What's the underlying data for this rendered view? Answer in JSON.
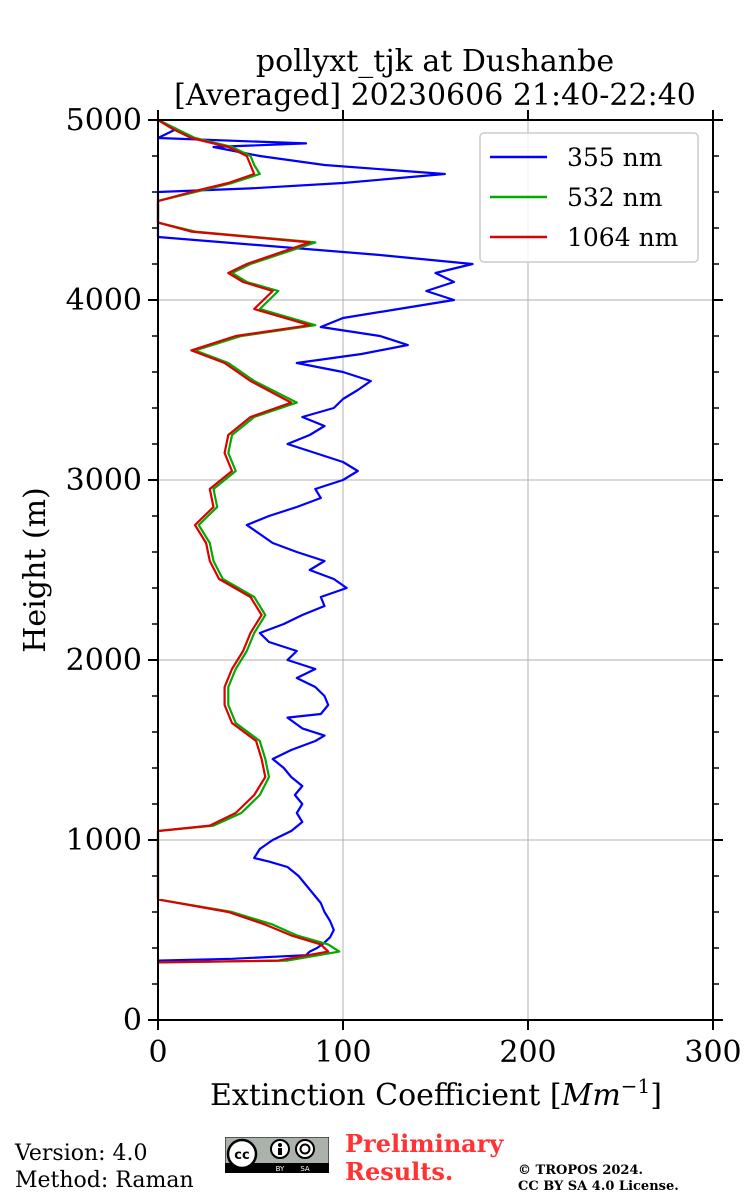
{
  "chart_data": {
    "type": "line",
    "title_line1": "pollyxt_tjk at Dushanbe",
    "title_line2": "[Averaged] 20230606 21:40-22:40",
    "xlabel_main": "Extinction Coefficient [",
    "xlabel_unit": "Mm",
    "xlabel_exp": "−1",
    "xlabel_close": "]",
    "ylabel": "Height (m)",
    "xlim": [
      0,
      300
    ],
    "ylim": [
      0,
      5000
    ],
    "x_ticks": [
      0,
      100,
      200,
      300
    ],
    "x_tick_labels": [
      "0",
      "100",
      "200",
      "300"
    ],
    "y_ticks": [
      0,
      1000,
      2000,
      3000,
      4000,
      5000
    ],
    "y_tick_labels": [
      "0",
      "1000",
      "2000",
      "3000",
      "4000",
      "5000"
    ],
    "grid": true,
    "legend_position": "top-right",
    "series": [
      {
        "name": "355 nm",
        "color": "#0000ff",
        "points": [
          [
            0,
            330
          ],
          [
            40,
            340
          ],
          [
            80,
            360
          ],
          [
            82,
            380
          ],
          [
            86,
            400
          ],
          [
            90,
            430
          ],
          [
            93,
            460
          ],
          [
            95,
            500
          ],
          [
            93,
            550
          ],
          [
            90,
            600
          ],
          [
            88,
            650
          ],
          [
            84,
            700
          ],
          [
            80,
            750
          ],
          [
            76,
            800
          ],
          [
            70,
            850
          ],
          [
            60,
            880
          ],
          [
            52,
            900
          ],
          [
            55,
            950
          ],
          [
            62,
            1000
          ],
          [
            72,
            1050
          ],
          [
            78,
            1100
          ],
          [
            75,
            1150
          ],
          [
            78,
            1200
          ],
          [
            74,
            1250
          ],
          [
            78,
            1300
          ],
          [
            72,
            1350
          ],
          [
            68,
            1400
          ],
          [
            62,
            1450
          ],
          [
            72,
            1500
          ],
          [
            85,
            1550
          ],
          [
            90,
            1580
          ],
          [
            78,
            1620
          ],
          [
            70,
            1680
          ],
          [
            88,
            1700
          ],
          [
            92,
            1750
          ],
          [
            90,
            1800
          ],
          [
            85,
            1850
          ],
          [
            75,
            1900
          ],
          [
            85,
            1950
          ],
          [
            70,
            2000
          ],
          [
            75,
            2050
          ],
          [
            60,
            2100
          ],
          [
            55,
            2150
          ],
          [
            68,
            2200
          ],
          [
            78,
            2250
          ],
          [
            90,
            2300
          ],
          [
            88,
            2350
          ],
          [
            102,
            2400
          ],
          [
            95,
            2450
          ],
          [
            82,
            2500
          ],
          [
            90,
            2550
          ],
          [
            75,
            2600
          ],
          [
            62,
            2650
          ],
          [
            55,
            2700
          ],
          [
            48,
            2750
          ],
          [
            60,
            2800
          ],
          [
            75,
            2850
          ],
          [
            88,
            2900
          ],
          [
            85,
            2950
          ],
          [
            100,
            3000
          ],
          [
            108,
            3050
          ],
          [
            100,
            3100
          ],
          [
            85,
            3150
          ],
          [
            70,
            3200
          ],
          [
            82,
            3250
          ],
          [
            90,
            3300
          ],
          [
            78,
            3350
          ],
          [
            95,
            3400
          ],
          [
            100,
            3450
          ],
          [
            108,
            3500
          ],
          [
            115,
            3550
          ],
          [
            100,
            3600
          ],
          [
            75,
            3650
          ],
          [
            110,
            3700
          ],
          [
            135,
            3750
          ],
          [
            120,
            3800
          ],
          [
            88,
            3850
          ],
          [
            100,
            3900
          ],
          [
            130,
            3950
          ],
          [
            160,
            4000
          ],
          [
            145,
            4050
          ],
          [
            160,
            4100
          ],
          [
            150,
            4150
          ],
          [
            170,
            4200
          ],
          [
            120,
            4250
          ],
          [
            0,
            4350
          ],
          [
            0,
            4400
          ],
          [
            0,
            4600
          ],
          [
            50,
            4620
          ],
          [
            100,
            4650
          ],
          [
            155,
            4700
          ],
          [
            90,
            4750
          ],
          [
            55,
            4800
          ],
          [
            30,
            4850
          ],
          [
            80,
            4870
          ],
          [
            0,
            4900
          ],
          [
            10,
            4950
          ],
          [
            0,
            5000
          ]
        ]
      },
      {
        "name": "532 nm",
        "color": "#00aa00",
        "points": [
          [
            0,
            320
          ],
          [
            70,
            330
          ],
          [
            98,
            380
          ],
          [
            92,
            420
          ],
          [
            75,
            470
          ],
          [
            62,
            530
          ],
          [
            40,
            600
          ],
          [
            0,
            670
          ],
          [
            0,
            1050
          ],
          [
            30,
            1080
          ],
          [
            45,
            1150
          ],
          [
            55,
            1250
          ],
          [
            60,
            1350
          ],
          [
            58,
            1450
          ],
          [
            55,
            1550
          ],
          [
            42,
            1650
          ],
          [
            38,
            1750
          ],
          [
            38,
            1850
          ],
          [
            42,
            1950
          ],
          [
            48,
            2050
          ],
          [
            52,
            2150
          ],
          [
            58,
            2250
          ],
          [
            52,
            2350
          ],
          [
            35,
            2450
          ],
          [
            30,
            2550
          ],
          [
            28,
            2650
          ],
          [
            22,
            2750
          ],
          [
            32,
            2850
          ],
          [
            30,
            2950
          ],
          [
            42,
            3050
          ],
          [
            38,
            3150
          ],
          [
            40,
            3250
          ],
          [
            52,
            3350
          ],
          [
            75,
            3430
          ],
          [
            52,
            3550
          ],
          [
            38,
            3650
          ],
          [
            20,
            3720
          ],
          [
            45,
            3800
          ],
          [
            85,
            3860
          ],
          [
            55,
            3950
          ],
          [
            65,
            4050
          ],
          [
            48,
            4100
          ],
          [
            40,
            4150
          ],
          [
            50,
            4200
          ],
          [
            85,
            4320
          ],
          [
            20,
            4380
          ],
          [
            0,
            4430
          ],
          [
            0,
            4550
          ],
          [
            20,
            4600
          ],
          [
            40,
            4650
          ],
          [
            55,
            4700
          ],
          [
            52,
            4750
          ],
          [
            50,
            4800
          ],
          [
            40,
            4850
          ],
          [
            20,
            4900
          ],
          [
            10,
            4950
          ],
          [
            0,
            5000
          ]
        ]
      },
      {
        "name": "1064 nm",
        "color": "#dd0000",
        "points": [
          [
            0,
            320
          ],
          [
            65,
            330
          ],
          [
            92,
            380
          ],
          [
            88,
            420
          ],
          [
            72,
            470
          ],
          [
            58,
            530
          ],
          [
            38,
            600
          ],
          [
            0,
            670
          ],
          [
            0,
            1050
          ],
          [
            28,
            1080
          ],
          [
            42,
            1150
          ],
          [
            52,
            1250
          ],
          [
            58,
            1350
          ],
          [
            56,
            1450
          ],
          [
            53,
            1550
          ],
          [
            40,
            1650
          ],
          [
            36,
            1750
          ],
          [
            36,
            1850
          ],
          [
            40,
            1950
          ],
          [
            46,
            2050
          ],
          [
            50,
            2150
          ],
          [
            56,
            2250
          ],
          [
            50,
            2350
          ],
          [
            33,
            2450
          ],
          [
            28,
            2550
          ],
          [
            26,
            2650
          ],
          [
            20,
            2750
          ],
          [
            30,
            2850
          ],
          [
            28,
            2950
          ],
          [
            40,
            3050
          ],
          [
            36,
            3150
          ],
          [
            38,
            3250
          ],
          [
            50,
            3350
          ],
          [
            72,
            3430
          ],
          [
            50,
            3550
          ],
          [
            36,
            3650
          ],
          [
            18,
            3720
          ],
          [
            42,
            3800
          ],
          [
            82,
            3860
          ],
          [
            52,
            3950
          ],
          [
            62,
            4050
          ],
          [
            46,
            4100
          ],
          [
            38,
            4150
          ],
          [
            48,
            4200
          ],
          [
            82,
            4320
          ],
          [
            18,
            4380
          ],
          [
            0,
            4430
          ],
          [
            0,
            4550
          ],
          [
            18,
            4600
          ],
          [
            38,
            4650
          ],
          [
            52,
            4700
          ],
          [
            50,
            4750
          ],
          [
            48,
            4800
          ],
          [
            38,
            4850
          ],
          [
            18,
            4900
          ],
          [
            8,
            4950
          ],
          [
            0,
            5000
          ]
        ]
      }
    ]
  },
  "footer": {
    "version": "Version: 4.0",
    "method": "Method: Raman",
    "preliminary_line1": "Preliminary",
    "preliminary_line2": "Results.",
    "copyright_line1": "© TROPOS 2024.",
    "copyright_line2": "CC BY SA 4.0 License.",
    "license_badge_icon": "cc-by-sa-license-icon"
  }
}
